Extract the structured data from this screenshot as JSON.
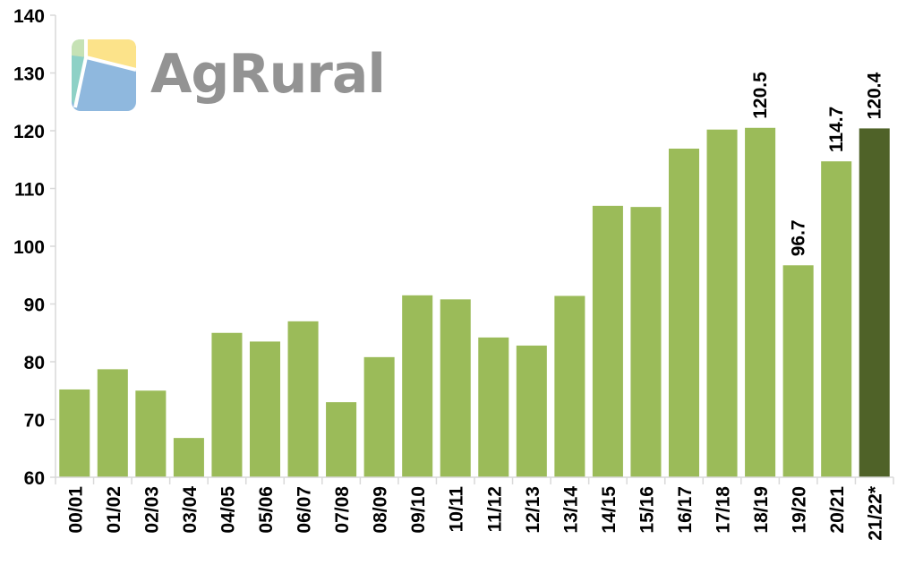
{
  "logo": {
    "text": "AgRural"
  },
  "colors": {
    "bar": "#9BBB59",
    "highlight_bar": "#4F6228",
    "axis": "#D9D9D9",
    "text": "#000000",
    "logo_yellow": "#FCE38A",
    "logo_green": "#C6E2B5",
    "logo_teal": "#8ED1C6",
    "logo_blue": "#8FB8DE",
    "logo_text": "#939393"
  },
  "chart_data": {
    "type": "bar",
    "categories": [
      "00/01",
      "01/02",
      "02/03",
      "03/04",
      "04/05",
      "05/06",
      "06/07",
      "07/08",
      "08/09",
      "09/10",
      "10/11",
      "11/12",
      "12/13",
      "13/14",
      "14/15",
      "15/16",
      "16/17",
      "17/18",
      "18/19",
      "19/20",
      "20/21",
      "21/22*"
    ],
    "values": [
      75.2,
      78.7,
      75.0,
      66.8,
      85.0,
      83.5,
      87.0,
      73.0,
      80.8,
      91.5,
      90.8,
      84.2,
      82.8,
      91.4,
      107.0,
      106.8,
      116.9,
      120.2,
      120.5,
      96.7,
      114.7,
      120.4
    ],
    "data_labels": [
      {
        "category": "18/19",
        "text": "120.5"
      },
      {
        "category": "19/20",
        "text": "96.7"
      },
      {
        "category": "20/21",
        "text": "114.7"
      },
      {
        "category": "21/22*",
        "text": "120.4"
      }
    ],
    "highlight": "21/22*",
    "ylim": [
      60,
      140
    ],
    "yticks": [
      "60",
      "70",
      "80",
      "90",
      "100",
      "110",
      "120",
      "130",
      "140"
    ],
    "title": "",
    "xlabel": "",
    "ylabel": "",
    "grid": false,
    "legend": "none"
  }
}
